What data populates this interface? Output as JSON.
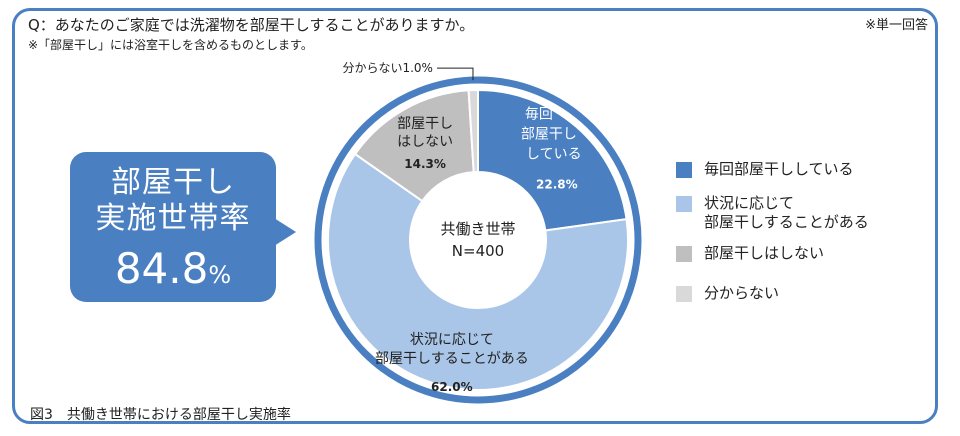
{
  "question": "Q：あなたのご家庭では洗濯物を部屋干しすることがありますか。",
  "note": "※「部屋干し」には浴室干しを含めるものとします。",
  "answer_type": "※単一回答",
  "callout": {
    "line1": "部屋干し",
    "line2": "実施世帯率",
    "rate": "84.8",
    "unit": "%",
    "color": "#4a7fc1"
  },
  "center_label": {
    "line1": "共働き世帯",
    "line2": "N=400"
  },
  "caption": "図3　共働き世帯における部屋干し実施率",
  "chart_data": {
    "type": "pie",
    "donut": true,
    "n": 400,
    "slices": [
      {
        "label": "毎回部屋干ししている",
        "value": 22.8,
        "value_label": "22.8%",
        "color": "#4a7fc1",
        "chart_label_lines": [
          "毎回",
          "部屋干し",
          "している"
        ]
      },
      {
        "label": "状況に応じて部屋干しすることがある",
        "value": 62.0,
        "value_label": "62.0%",
        "color": "#a9c6e8",
        "chart_label_lines": [
          "状況に応じて",
          "部屋干しすることがある"
        ]
      },
      {
        "label": "部屋干しはしない",
        "value": 14.3,
        "value_label": "14.3%",
        "color": "#bfbfbf",
        "chart_label_lines": [
          "部屋干し",
          "はしない"
        ]
      },
      {
        "label": "分からない",
        "value": 1.0,
        "value_label": "1.0%",
        "color": "#d9d9d9",
        "chart_label_lines": [
          "分からない"
        ]
      }
    ],
    "legend": [
      {
        "lines": [
          "毎回部屋干ししている"
        ],
        "color": "#4a7fc1"
      },
      {
        "lines": [
          "状況に応じて",
          "部屋干しすることがある"
        ],
        "color": "#a9c6e8"
      },
      {
        "lines": [
          "部屋干しはしない"
        ],
        "color": "#bfbfbf"
      },
      {
        "lines": [
          "分からない"
        ],
        "color": "#d9d9d9"
      }
    ],
    "legend_position": "right",
    "outer_ring_color": "#4a7fc1"
  }
}
